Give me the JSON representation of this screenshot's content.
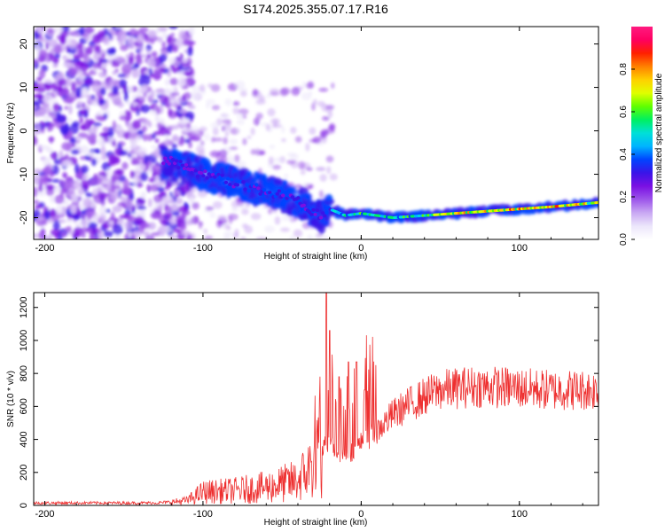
{
  "figure": {
    "title": "S174.2025.355.07.17.R16"
  },
  "chart_data": [
    {
      "type": "heatmap",
      "name": "spectrogram",
      "xlabel": "Height of straight line (km)",
      "ylabel": "Frequency (Hz)",
      "xlim": [
        -207,
        150
      ],
      "ylim": [
        -25,
        24
      ],
      "xticks": [
        -200,
        -100,
        0,
        100
      ],
      "yticks": [
        -20,
        -10,
        0,
        10,
        20
      ],
      "colorbar": {
        "label": "Normalized spectral amplitude",
        "range": [
          0,
          1
        ],
        "ticks": [
          "0.0",
          "0.2",
          "0.4",
          "0.6",
          "0.8"
        ],
        "colors": [
          "#ffffff",
          "#ece6fb",
          "#c9a8f3",
          "#9d55ea",
          "#7a10e3",
          "#3a14e8",
          "#0044ff",
          "#00b4ff",
          "#00e0d8",
          "#00f060",
          "#60ff00",
          "#e0ff00",
          "#ffd000",
          "#ff8000",
          "#ff2000",
          "#ff0060",
          "#ff1a80"
        ]
      },
      "ridge": {
        "x": [
          -120,
          -100,
          -80,
          -60,
          -40,
          -25,
          -20,
          -10,
          0,
          10,
          20,
          40,
          60,
          80,
          100,
          120,
          150
        ],
        "frequency_hz": [
          -7,
          -10,
          -12,
          -14,
          -16,
          -20,
          -18,
          -19.5,
          -19,
          -19.5,
          -20,
          -19.5,
          -19,
          -18.5,
          -18,
          -17.5,
          -16.5
        ],
        "amplitude": [
          0.3,
          0.35,
          0.35,
          0.35,
          0.35,
          0.3,
          0.45,
          0.5,
          0.55,
          0.55,
          0.55,
          0.6,
          0.75,
          0.75,
          0.8,
          0.85,
          0.7
        ]
      }
    },
    {
      "type": "line",
      "name": "snr",
      "xlabel": "Height of straight line (km)",
      "ylabel": "SNR (10 * v/v)",
      "xlim": [
        -207,
        150
      ],
      "ylim": [
        0,
        1290
      ],
      "xticks": [
        -200,
        -100,
        0,
        100
      ],
      "yticks": [
        0,
        200,
        400,
        600,
        800,
        1000,
        1200
      ],
      "color": "#ee3030",
      "envelope": {
        "x": [
          -207,
          -130,
          -120,
          -110,
          -100,
          -80,
          -60,
          -40,
          -30,
          -25,
          -22,
          -20,
          -15,
          -10,
          -5,
          0,
          10,
          20,
          30,
          40,
          50,
          60,
          70,
          80,
          100,
          120,
          150
        ],
        "mean": [
          15,
          15,
          20,
          30,
          80,
          90,
          110,
          150,
          250,
          320,
          380,
          380,
          320,
          300,
          330,
          380,
          450,
          550,
          610,
          660,
          700,
          710,
          720,
          720,
          710,
          700,
          700
        ]
      },
      "spikes": [
        {
          "x": -22,
          "value": 1290
        },
        {
          "x": -20,
          "value": 1060
        },
        {
          "x": -14,
          "value": 780
        },
        {
          "x": -8,
          "value": 870
        },
        {
          "x": -3,
          "value": 870
        },
        {
          "x": 2,
          "value": 700
        }
      ]
    }
  ]
}
